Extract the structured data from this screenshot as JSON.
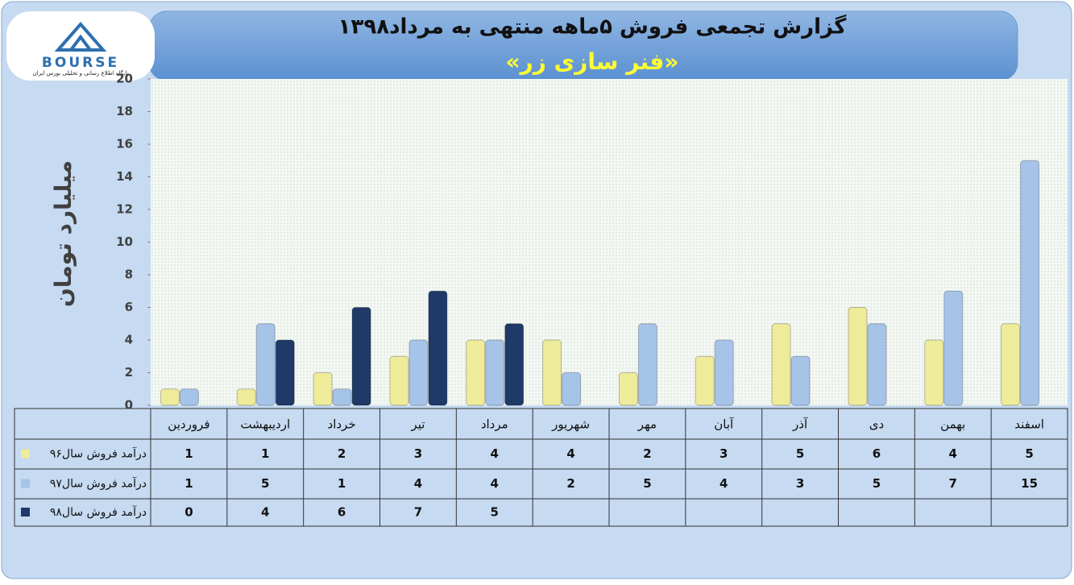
{
  "chart_data": {
    "type": "bar",
    "title": "گزارش تجمعی فروش ۵ماهه منتهی به مرداد۱۳۹۸",
    "subtitle": "«فنر سازی زر»",
    "y_label": "میلیارد تومان",
    "categories": [
      "فروردین",
      "اردیبهشت",
      "خرداد",
      "تیر",
      "مرداد",
      "شهریور",
      "مهر",
      "آبان",
      "آذر",
      "دی",
      "بهمن",
      "اسفند"
    ],
    "series": [
      {
        "name": "درآمد فروش سال۹۶",
        "color": "#eeeb9a",
        "values": [
          1,
          1,
          2,
          3,
          4,
          4,
          2,
          3,
          5,
          6,
          4,
          5
        ]
      },
      {
        "name": "درآمد فروش سال۹۷",
        "color": "#a6c3e8",
        "values": [
          1,
          5,
          1,
          4,
          4,
          2,
          5,
          4,
          3,
          5,
          7,
          15
        ]
      },
      {
        "name": "درآمد فروش سال۹۸",
        "color": "#1f3a68",
        "values": [
          0,
          4,
          6,
          7,
          5,
          null,
          null,
          null,
          null,
          null,
          null,
          null
        ]
      }
    ],
    "ylim": [
      0,
      20
    ],
    "yticks": [
      0,
      2,
      4,
      6,
      8,
      10,
      12,
      14,
      16,
      18,
      20
    ],
    "grid": false,
    "data_table": true
  },
  "logo": {
    "text": "BOURSE",
    "caption": "پایگاه اطلاع رسانی و تحلیلی بورس ایران"
  }
}
